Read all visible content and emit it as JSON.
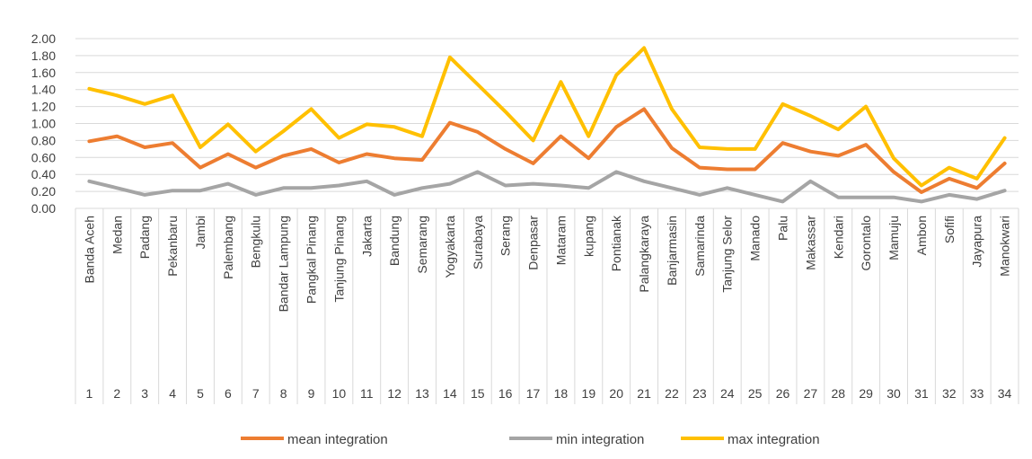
{
  "chart_data": {
    "type": "line",
    "title": "",
    "xlabel": "",
    "ylabel": "",
    "ylim": [
      0,
      2
    ],
    "y_ticks": [
      "0.00",
      "0.20",
      "0.40",
      "0.60",
      "0.80",
      "1.00",
      "1.20",
      "1.40",
      "1.60",
      "1.80",
      "2.00"
    ],
    "grid": true,
    "legend_position": "bottom",
    "categories": [
      "Banda Aceh",
      "Medan",
      "Padang",
      "Pekanbaru",
      "Jambi",
      "Palembang",
      "Bengkulu",
      "Bandar Lampung",
      "Pangkal Pinang",
      "Tanjung Pinang",
      "Jakarta",
      "Bandung",
      "Semarang",
      "Yogyakarta",
      "Surabaya",
      "Serang",
      "Denpasar",
      "Mataram",
      "kupang",
      "Pontianak",
      "Palangkaraya",
      "Banjarmasin",
      "Samarinda",
      "Tanjung Selor",
      "Manado",
      "Palu",
      "Makassar",
      "Kendari",
      "Gorontalo",
      "Mamuju",
      "Ambon",
      "Sofifi",
      "Jayapura",
      "Manokwari"
    ],
    "numbers": [
      "1",
      "2",
      "3",
      "4",
      "5",
      "6",
      "7",
      "8",
      "9",
      "10",
      "11",
      "12",
      "13",
      "14",
      "15",
      "16",
      "17",
      "18",
      "19",
      "20",
      "21",
      "22",
      "23",
      "24",
      "25",
      "26",
      "27",
      "28",
      "29",
      "30",
      "31",
      "32",
      "33",
      "34"
    ],
    "series": [
      {
        "name": "mean integration",
        "color": "#ED7D31",
        "values": [
          0.79,
          0.85,
          0.72,
          0.77,
          0.48,
          0.64,
          0.48,
          0.62,
          0.7,
          0.54,
          0.64,
          0.59,
          0.57,
          1.01,
          0.9,
          0.7,
          0.53,
          0.85,
          0.59,
          0.96,
          1.17,
          0.71,
          0.48,
          0.46,
          0.46,
          0.77,
          0.67,
          0.62,
          0.75,
          0.43,
          0.19,
          0.35,
          0.24,
          0.53
        ]
      },
      {
        "name": "min integration",
        "color": "#A5A5A5",
        "values": [
          0.32,
          0.24,
          0.16,
          0.21,
          0.21,
          0.29,
          0.16,
          0.24,
          0.24,
          0.27,
          0.32,
          0.16,
          0.24,
          0.29,
          0.43,
          0.27,
          0.29,
          0.27,
          0.24,
          0.43,
          0.32,
          0.24,
          0.16,
          0.24,
          0.16,
          0.08,
          0.32,
          0.13,
          0.13,
          0.13,
          0.08,
          0.16,
          0.11,
          0.21
        ]
      },
      {
        "name": "max integration",
        "color": "#FFC000",
        "values": [
          1.41,
          1.33,
          1.23,
          1.33,
          0.72,
          0.99,
          0.67,
          0.91,
          1.17,
          0.83,
          0.99,
          0.96,
          0.85,
          1.78,
          1.46,
          1.14,
          0.8,
          1.49,
          0.85,
          1.57,
          1.89,
          1.17,
          0.72,
          0.7,
          0.7,
          1.23,
          1.09,
          0.93,
          1.2,
          0.59,
          0.27,
          0.48,
          0.35,
          0.83
        ]
      }
    ]
  }
}
